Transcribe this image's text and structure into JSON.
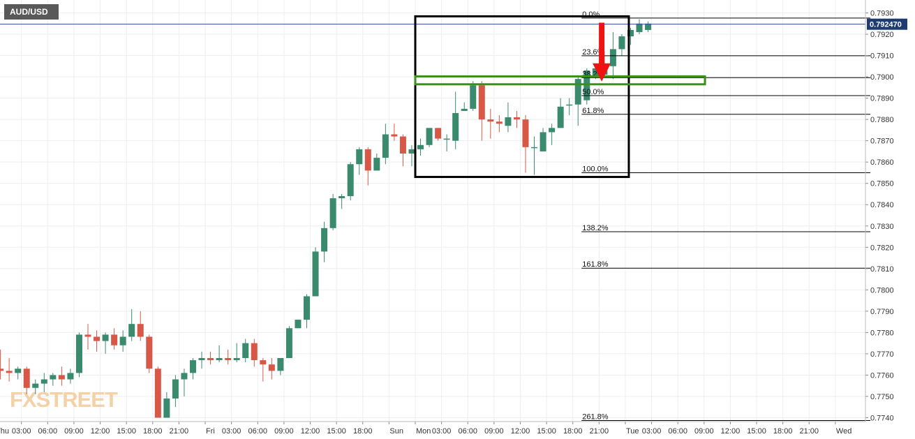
{
  "chart_data": {
    "type": "candlestick",
    "title": "AUD/USD",
    "xlabel": "",
    "ylabel": "",
    "ylim": [
      0.77385,
      0.79345
    ],
    "y_ticks": [
      "0.7740",
      "0.7750",
      "0.7760",
      "0.7770",
      "0.7780",
      "0.7790",
      "0.7800",
      "0.7810",
      "0.7820",
      "0.7830",
      "0.7840",
      "0.7850",
      "0.7860",
      "0.7870",
      "0.7880",
      "0.7890",
      "0.7900",
      "0.7910",
      "0.7920",
      "0.7930"
    ],
    "x_ticks": [
      {
        "label": "Thu",
        "slot": -0.6
      },
      {
        "label": "03:00",
        "slot": 2.4
      },
      {
        "label": "06:00",
        "slot": 5.4
      },
      {
        "label": "09:00",
        "slot": 8.4
      },
      {
        "label": "12:00",
        "slot": 11.4
      },
      {
        "label": "15:00",
        "slot": 14.4
      },
      {
        "label": "18:00",
        "slot": 17.4
      },
      {
        "label": "21:00",
        "slot": 20.4
      },
      {
        "label": "Fri",
        "slot": 23.4
      },
      {
        "label": "03:00",
        "slot": 26.4
      },
      {
        "label": "06:00",
        "slot": 29.4
      },
      {
        "label": "09:00",
        "slot": 32.4
      },
      {
        "label": "12:00",
        "slot": 35.4
      },
      {
        "label": "15:00",
        "slot": 38.4
      },
      {
        "label": "18:00",
        "slot": 41.4
      },
      {
        "label": "Sun",
        "slot": 44.4
      },
      {
        "label": "Mon",
        "slot": 47.4
      },
      {
        "label": "03:00",
        "slot": 50.4
      },
      {
        "label": "06:00",
        "slot": 53.4
      },
      {
        "label": "09:00",
        "slot": 56.4
      },
      {
        "label": "12:00",
        "slot": 59.4
      },
      {
        "label": "15:00",
        "slot": 62.4
      },
      {
        "label": "18:00",
        "slot": 65.4
      },
      {
        "label": "21:00",
        "slot": 68.4
      },
      {
        "label": "Tue",
        "slot": 71.4
      },
      {
        "label": "03:00",
        "slot": 74.4
      },
      {
        "label": "06:00",
        "slot": 77.4
      },
      {
        "label": "09:00",
        "slot": 80.4
      },
      {
        "label": "12:00",
        "slot": 83.4
      },
      {
        "label": "15:00",
        "slot": 86.4
      },
      {
        "label": "18:00",
        "slot": 89.4
      },
      {
        "label": "21:00",
        "slot": 92.4
      },
      {
        "label": "Wed",
        "slot": 95.4
      }
    ],
    "candles": [
      {
        "o": 0.7763,
        "h": 0.7772,
        "l": 0.7758,
        "c": 0.7762
      },
      {
        "o": 0.7762,
        "h": 0.7768,
        "l": 0.7757,
        "c": 0.7761
      },
      {
        "o": 0.7761,
        "h": 0.7764,
        "l": 0.7758,
        "c": 0.7763
      },
      {
        "o": 0.7763,
        "h": 0.7764,
        "l": 0.7751,
        "c": 0.7754
      },
      {
        "o": 0.7754,
        "h": 0.7758,
        "l": 0.7751,
        "c": 0.7756
      },
      {
        "o": 0.7756,
        "h": 0.7761,
        "l": 0.7752,
        "c": 0.7758
      },
      {
        "o": 0.7758,
        "h": 0.7761,
        "l": 0.7755,
        "c": 0.776
      },
      {
        "o": 0.776,
        "h": 0.7764,
        "l": 0.7755,
        "c": 0.7758
      },
      {
        "o": 0.7758,
        "h": 0.7763,
        "l": 0.7756,
        "c": 0.7761
      },
      {
        "o": 0.7761,
        "h": 0.778,
        "l": 0.7759,
        "c": 0.7779
      },
      {
        "o": 0.7779,
        "h": 0.7784,
        "l": 0.7772,
        "c": 0.7778
      },
      {
        "o": 0.7778,
        "h": 0.7781,
        "l": 0.7771,
        "c": 0.7776
      },
      {
        "o": 0.7776,
        "h": 0.778,
        "l": 0.777,
        "c": 0.7779
      },
      {
        "o": 0.7779,
        "h": 0.7782,
        "l": 0.7772,
        "c": 0.7774
      },
      {
        "o": 0.7774,
        "h": 0.7781,
        "l": 0.7771,
        "c": 0.7778
      },
      {
        "o": 0.7778,
        "h": 0.7791,
        "l": 0.7776,
        "c": 0.7784
      },
      {
        "o": 0.7784,
        "h": 0.779,
        "l": 0.7776,
        "c": 0.7778
      },
      {
        "o": 0.7778,
        "h": 0.7779,
        "l": 0.7761,
        "c": 0.7763
      },
      {
        "o": 0.7763,
        "h": 0.7764,
        "l": 0.774,
        "c": 0.774
      },
      {
        "o": 0.774,
        "h": 0.7752,
        "l": 0.774,
        "c": 0.7749
      },
      {
        "o": 0.7749,
        "h": 0.776,
        "l": 0.7745,
        "c": 0.7758
      },
      {
        "o": 0.7758,
        "h": 0.7763,
        "l": 0.775,
        "c": 0.7761
      },
      {
        "o": 0.7761,
        "h": 0.7768,
        "l": 0.7758,
        "c": 0.7767
      },
      {
        "o": 0.7767,
        "h": 0.7771,
        "l": 0.7763,
        "c": 0.7768
      },
      {
        "o": 0.7768,
        "h": 0.7771,
        "l": 0.7765,
        "c": 0.7767
      },
      {
        "o": 0.7767,
        "h": 0.7774,
        "l": 0.7766,
        "c": 0.7768
      },
      {
        "o": 0.7768,
        "h": 0.7772,
        "l": 0.7765,
        "c": 0.7767
      },
      {
        "o": 0.7767,
        "h": 0.7775,
        "l": 0.7766,
        "c": 0.7768
      },
      {
        "o": 0.7768,
        "h": 0.7777,
        "l": 0.7766,
        "c": 0.7775
      },
      {
        "o": 0.7775,
        "h": 0.7777,
        "l": 0.7764,
        "c": 0.7767
      },
      {
        "o": 0.7767,
        "h": 0.7768,
        "l": 0.7757,
        "c": 0.7765
      },
      {
        "o": 0.7765,
        "h": 0.7768,
        "l": 0.7758,
        "c": 0.7762
      },
      {
        "o": 0.7762,
        "h": 0.7768,
        "l": 0.776,
        "c": 0.7768
      },
      {
        "o": 0.7768,
        "h": 0.7783,
        "l": 0.7768,
        "c": 0.7782
      },
      {
        "o": 0.7782,
        "h": 0.7786,
        "l": 0.7782,
        "c": 0.7786
      },
      {
        "o": 0.7786,
        "h": 0.7798,
        "l": 0.7782,
        "c": 0.7797
      },
      {
        "o": 0.7797,
        "h": 0.782,
        "l": 0.7797,
        "c": 0.7818
      },
      {
        "o": 0.7818,
        "h": 0.7832,
        "l": 0.7813,
        "c": 0.7829
      },
      {
        "o": 0.7829,
        "h": 0.7845,
        "l": 0.7828,
        "c": 0.7843
      },
      {
        "o": 0.7843,
        "h": 0.7845,
        "l": 0.7838,
        "c": 0.7844
      },
      {
        "o": 0.7844,
        "h": 0.786,
        "l": 0.7842,
        "c": 0.7859
      },
      {
        "o": 0.7859,
        "h": 0.7867,
        "l": 0.7854,
        "c": 0.7866
      },
      {
        "o": 0.7866,
        "h": 0.7867,
        "l": 0.7849,
        "c": 0.7856
      },
      {
        "o": 0.7856,
        "h": 0.7864,
        "l": 0.7856,
        "c": 0.7862
      },
      {
        "o": 0.7862,
        "h": 0.7878,
        "l": 0.7859,
        "c": 0.7873
      },
      {
        "o": 0.7873,
        "h": 0.7878,
        "l": 0.787,
        "c": 0.7872
      },
      {
        "o": 0.7872,
        "h": 0.7873,
        "l": 0.7858,
        "c": 0.7864
      },
      {
        "o": 0.7864,
        "h": 0.7868,
        "l": 0.7858,
        "c": 0.7866
      },
      {
        "o": 0.7866,
        "h": 0.7871,
        "l": 0.7863,
        "c": 0.7868
      },
      {
        "o": 0.7868,
        "h": 0.7875,
        "l": 0.7867,
        "c": 0.7876
      },
      {
        "o": 0.7876,
        "h": 0.7876,
        "l": 0.787,
        "c": 0.7871
      },
      {
        "o": 0.7871,
        "h": 0.7873,
        "l": 0.7865,
        "c": 0.7871
      },
      {
        "o": 0.787,
        "h": 0.7893,
        "l": 0.7866,
        "c": 0.7883
      },
      {
        "o": 0.7884,
        "h": 0.7888,
        "l": 0.7884,
        "c": 0.7885
      },
      {
        "o": 0.7885,
        "h": 0.7898,
        "l": 0.7884,
        "c": 0.7896
      },
      {
        "o": 0.7896,
        "h": 0.7898,
        "l": 0.787,
        "c": 0.788
      },
      {
        "o": 0.788,
        "h": 0.7885,
        "l": 0.7871,
        "c": 0.7879
      },
      {
        "o": 0.7879,
        "h": 0.7882,
        "l": 0.7874,
        "c": 0.7878
      },
      {
        "o": 0.7877,
        "h": 0.7888,
        "l": 0.7874,
        "c": 0.7881
      },
      {
        "o": 0.7881,
        "h": 0.7884,
        "l": 0.7876,
        "c": 0.788
      },
      {
        "o": 0.788,
        "h": 0.7882,
        "l": 0.7855,
        "c": 0.7867
      },
      {
        "o": 0.7867,
        "h": 0.7872,
        "l": 0.7854,
        "c": 0.7867
      },
      {
        "o": 0.7865,
        "h": 0.7876,
        "l": 0.7865,
        "c": 0.7874
      },
      {
        "o": 0.7874,
        "h": 0.7878,
        "l": 0.7868,
        "c": 0.7876
      },
      {
        "o": 0.7876,
        "h": 0.789,
        "l": 0.7876,
        "c": 0.7886
      },
      {
        "o": 0.7887,
        "h": 0.789,
        "l": 0.7882,
        "c": 0.7887
      },
      {
        "o": 0.7887,
        "h": 0.79,
        "l": 0.7877,
        "c": 0.7899
      },
      {
        "o": 0.7889,
        "h": 0.7904,
        "l": 0.7887,
        "c": 0.7903
      },
      {
        "o": 0.79,
        "h": 0.7904,
        "l": 0.7899,
        "c": 0.7904
      },
      {
        "o": 0.7901,
        "h": 0.7912,
        "l": 0.7901,
        "c": 0.7905
      },
      {
        "o": 0.7905,
        "h": 0.7921,
        "l": 0.7899,
        "c": 0.7913
      },
      {
        "o": 0.7913,
        "h": 0.792,
        "l": 0.791,
        "c": 0.7919
      },
      {
        "o": 0.7919,
        "h": 0.7923,
        "l": 0.7915,
        "c": 0.7922
      },
      {
        "o": 0.7921,
        "h": 0.7927,
        "l": 0.792,
        "c": 0.7925
      },
      {
        "o": 0.7922,
        "h": 0.7926,
        "l": 0.7921,
        "c": 0.7925
      }
    ],
    "current_price": 0.79247,
    "current_price_label": "0.792470",
    "fibonacci": [
      {
        "label": "0.0%",
        "price": 0.79276
      },
      {
        "label": "23.6%",
        "price": 0.79099
      },
      {
        "label": "38.2%",
        "price": 0.78996
      },
      {
        "label": "50.0%",
        "price": 0.78912
      },
      {
        "label": "61.8%",
        "price": 0.78824
      },
      {
        "label": "100.0%",
        "price": 0.7855
      },
      {
        "label": "138.2%",
        "price": 0.78273
      },
      {
        "label": "161.8%",
        "price": 0.78102
      },
      {
        "label": "261.8%",
        "price": 0.77387
      }
    ],
    "fib_start_slot": 66.4,
    "fib_end_slot": 99.4,
    "box": {
      "slot_start": 47.4,
      "slot_end": 71.8,
      "price_top": 0.79284,
      "price_bottom": 0.7853
    },
    "zone": {
      "slot_start": 47.4,
      "slot_end": 80.5,
      "price_top": 0.79002,
      "price_bottom": 0.78965
    },
    "arrow": {
      "slot": 68.7,
      "price_top": 0.79254,
      "price_bottom": 0.78978
    },
    "colors": {
      "up": "#3a8a6e",
      "down": "#d85848",
      "grid": "#eceef2",
      "price_line": "#2e4c86",
      "price_tag": "#1e3c72",
      "box": "#000000",
      "zone": "#3b8f1a",
      "arrow": "#ee1212",
      "fib": "#000000",
      "watermark": "#f2c18a"
    }
  },
  "symbol": "AUD/USD",
  "watermark": "FXSTREET"
}
